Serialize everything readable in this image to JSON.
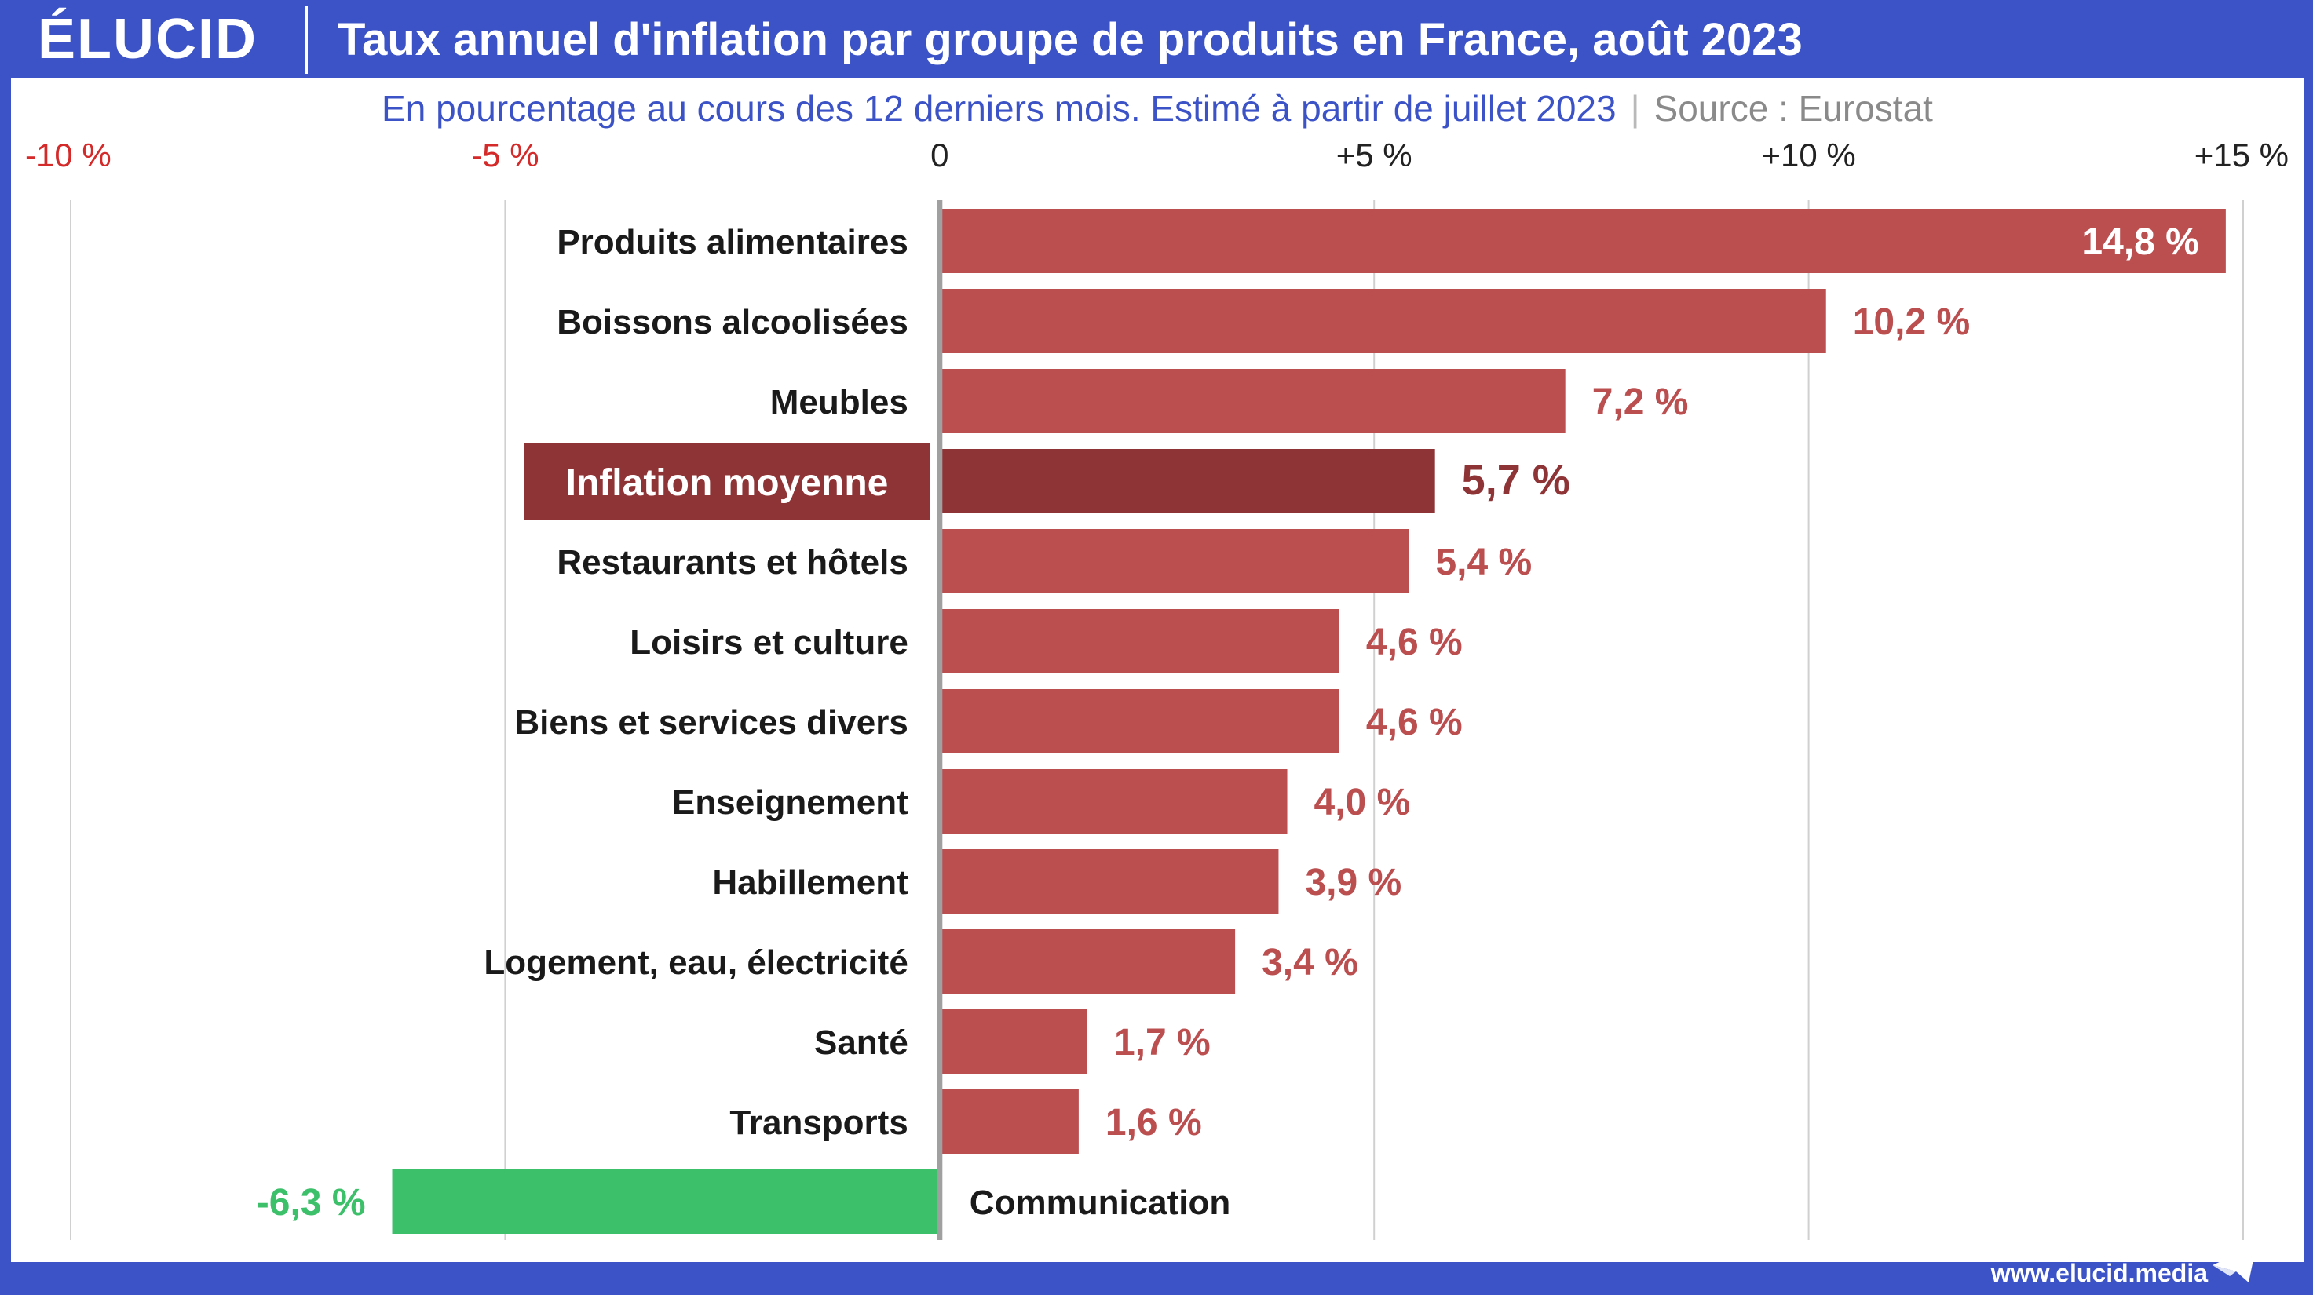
{
  "header": {
    "logo": "ÉLUCID",
    "title": "Taux annuel d'inflation par groupe de produits en France, août 2023"
  },
  "subtitle": {
    "description": "En pourcentage au cours des 12 derniers mois. Estimé à partir de juillet 2023",
    "separator": "|",
    "source": "Source : Eurostat"
  },
  "footer": {
    "url": "www.elucid.media",
    "mark_icon": "paper-plane-icon"
  },
  "colors": {
    "brand_blue": "#3b53c6",
    "bar_positive": "#bb4e4f",
    "bar_highlight": "#8f3436",
    "bar_negative": "#3cc06a",
    "label_positive": "#bb4e4f",
    "label_highlight": "#8f3436",
    "label_negative": "#3cc06a",
    "tick_negative": "#d42a2a",
    "tick_positive": "#222222",
    "category_text": "#1a1a1a",
    "gridline": "#d0d0d0",
    "zero_axis": "#a0a0a0"
  },
  "chart_data": {
    "type": "bar",
    "orientation": "horizontal",
    "title": "Taux annuel d'inflation par groupe de produits en France, août 2023",
    "subtitle": "En pourcentage au cours des 12 derniers mois. Estimé à partir de juillet 2023",
    "xlim": [
      -10,
      15
    ],
    "xticks": [
      -10,
      -5,
      0,
      5,
      10,
      15
    ],
    "xtick_labels": [
      "-10 %",
      "-5 %",
      "0",
      "+5 %",
      "+10 %",
      "+15 %"
    ],
    "grid": true,
    "categories": [
      "Produits alimentaires",
      "Boissons alcoolisées",
      "Meubles",
      "Inflation moyenne",
      "Restaurants et hôtels",
      "Loisirs et culture",
      "Biens et services divers",
      "Enseignement",
      "Habillement",
      "Logement, eau, électricité",
      "Santé",
      "Transports",
      "Communication"
    ],
    "values": [
      14.8,
      10.2,
      7.2,
      5.7,
      5.4,
      4.6,
      4.6,
      4.0,
      3.9,
      3.4,
      1.7,
      1.6,
      -6.3
    ],
    "value_labels": [
      "14,8 %",
      "10,2 %",
      "7,2 %",
      "5,7 %",
      "5,4 %",
      "4,6 %",
      "4,6 %",
      "4,0 %",
      "3,9 %",
      "3,4 %",
      "1,7 %",
      "1,6 %",
      "-6,3 %"
    ],
    "highlight_category": "Inflation moyenne"
  }
}
